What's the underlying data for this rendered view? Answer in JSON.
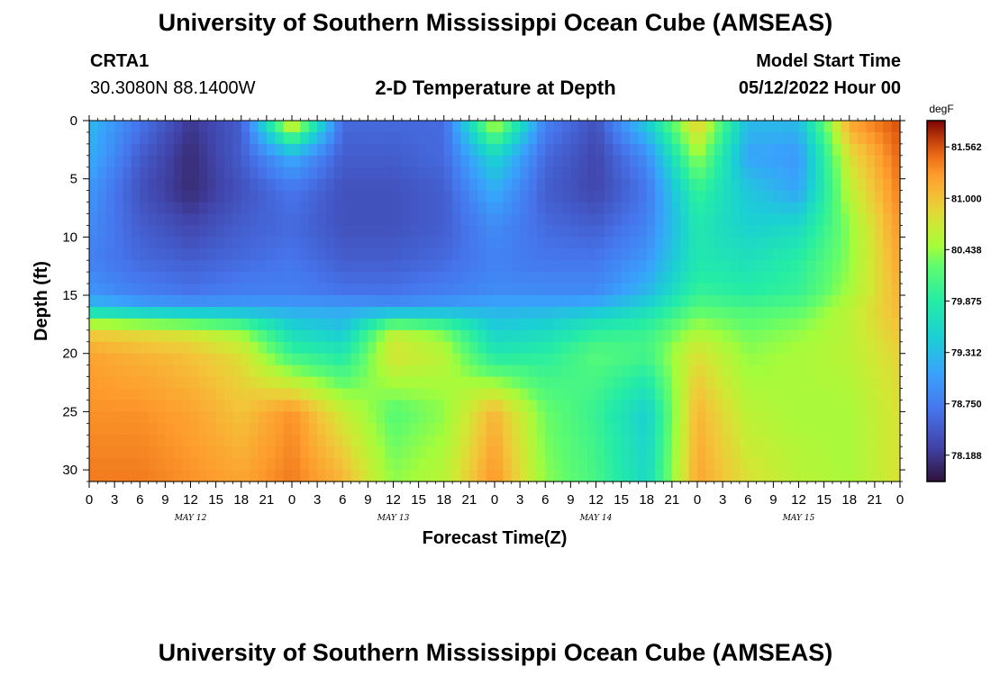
{
  "header": {
    "title": "University of Southern Mississippi Ocean Cube (AMSEAS)",
    "station": "CRTA1",
    "coords": "30.3080N  88.1400W",
    "plot_title": "2-D Temperature at Depth",
    "start_label": "Model Start Time",
    "start_value": "05/12/2022 Hour 00"
  },
  "footer": {
    "title": "University of Southern Mississippi Ocean Cube (AMSEAS)"
  },
  "chart_data": {
    "type": "heatmap",
    "title": "2-D Temperature at Depth",
    "xlabel": "Forecast Time(Z)",
    "ylabel": "Depth (ft)",
    "xlim": [
      0,
      96
    ],
    "ylim": [
      31,
      0
    ],
    "x_ticks": [
      0,
      3,
      6,
      9,
      12,
      15,
      18,
      21,
      24,
      27,
      30,
      33,
      36,
      39,
      42,
      45,
      48,
      51,
      54,
      57,
      60,
      63,
      66,
      69,
      72,
      75,
      78,
      81,
      84,
      87,
      90,
      93,
      96
    ],
    "x_tick_labels": [
      "0",
      "3",
      "6",
      "9",
      "12",
      "15",
      "18",
      "21",
      "0",
      "3",
      "6",
      "9",
      "12",
      "15",
      "18",
      "21",
      "0",
      "3",
      "6",
      "9",
      "12",
      "15",
      "18",
      "21",
      "0",
      "3",
      "6",
      "9",
      "12",
      "15",
      "18",
      "21",
      "0"
    ],
    "y_ticks": [
      0,
      5,
      10,
      15,
      20,
      25,
      30
    ],
    "y_tick_labels": [
      "0",
      "5",
      "10",
      "15",
      "20",
      "25",
      "30"
    ],
    "day_labels": [
      {
        "label": "MAY 12",
        "x": 12
      },
      {
        "label": "MAY 13",
        "x": 36
      },
      {
        "label": "MAY 14",
        "x": 60
      },
      {
        "label": "MAY 15",
        "x": 84
      }
    ],
    "colorbar": {
      "unit": "degF",
      "range": [
        77.9,
        81.85
      ],
      "ticks": [
        81.562,
        81.0,
        80.438,
        79.875,
        79.312,
        78.75,
        78.188
      ],
      "tick_labels": [
        "81.562",
        "81.000",
        "80.438",
        "79.875",
        "79.312",
        "78.750",
        "78.188"
      ]
    },
    "grid_hours": [
      0,
      6,
      12,
      18,
      24,
      30,
      36,
      42,
      48,
      54,
      60,
      66,
      72,
      78,
      84,
      90,
      96
    ],
    "grid_depths_ft": [
      0,
      3,
      6,
      9,
      12,
      15,
      16,
      18,
      20,
      25,
      31
    ],
    "values_degF": [
      [
        79.3,
        78.7,
        78.2,
        78.5,
        81.0,
        78.6,
        78.6,
        78.6,
        80.7,
        78.8,
        78.4,
        79.5,
        81.0,
        79.3,
        79.3,
        81.2,
        81.6
      ],
      [
        79.2,
        78.5,
        78.1,
        78.5,
        79.2,
        78.5,
        78.5,
        78.6,
        79.6,
        78.6,
        78.3,
        78.9,
        80.5,
        79.1,
        79.0,
        80.8,
        81.5
      ],
      [
        79.0,
        78.4,
        78.1,
        78.4,
        78.7,
        78.4,
        78.4,
        78.5,
        79.2,
        78.5,
        78.3,
        78.7,
        80.0,
        79.4,
        79.1,
        80.6,
        81.4
      ],
      [
        78.9,
        78.5,
        78.3,
        78.5,
        78.6,
        78.4,
        78.4,
        78.5,
        78.9,
        78.6,
        78.5,
        78.8,
        79.8,
        79.5,
        79.6,
        80.4,
        81.3
      ],
      [
        78.8,
        78.6,
        78.5,
        78.6,
        78.7,
        78.5,
        78.5,
        78.6,
        78.8,
        78.7,
        78.7,
        79.0,
        79.8,
        79.7,
        79.9,
        80.4,
        81.2
      ],
      [
        79.0,
        78.8,
        78.7,
        78.8,
        78.8,
        78.7,
        78.7,
        78.8,
        78.9,
        78.9,
        78.9,
        79.3,
        80.0,
        79.9,
        80.0,
        80.5,
        81.1
      ],
      [
        79.4,
        79.2,
        79.1,
        79.1,
        79.1,
        79.1,
        79.0,
        79.1,
        79.2,
        79.2,
        79.3,
        79.6,
        80.2,
        80.1,
        80.2,
        80.6,
        81.1
      ],
      [
        80.9,
        80.8,
        80.7,
        80.4,
        79.6,
        79.4,
        80.6,
        80.3,
        79.5,
        79.6,
        79.9,
        80.0,
        80.5,
        80.3,
        80.4,
        80.6,
        81.0
      ],
      [
        81.2,
        81.1,
        81.0,
        80.8,
        80.0,
        79.8,
        80.8,
        80.6,
        79.8,
        79.9,
        80.2,
        80.1,
        80.8,
        80.4,
        80.5,
        80.6,
        80.9
      ],
      [
        81.3,
        81.3,
        81.2,
        81.0,
        81.3,
        80.7,
        80.2,
        80.4,
        81.1,
        80.3,
        80.0,
        79.5,
        81.1,
        80.6,
        80.5,
        80.5,
        80.8
      ],
      [
        81.4,
        81.4,
        81.3,
        81.2,
        81.4,
        81.1,
        80.4,
        80.6,
        81.3,
        80.4,
        80.1,
        79.6,
        81.2,
        80.8,
        80.6,
        80.5,
        80.8
      ]
    ]
  }
}
